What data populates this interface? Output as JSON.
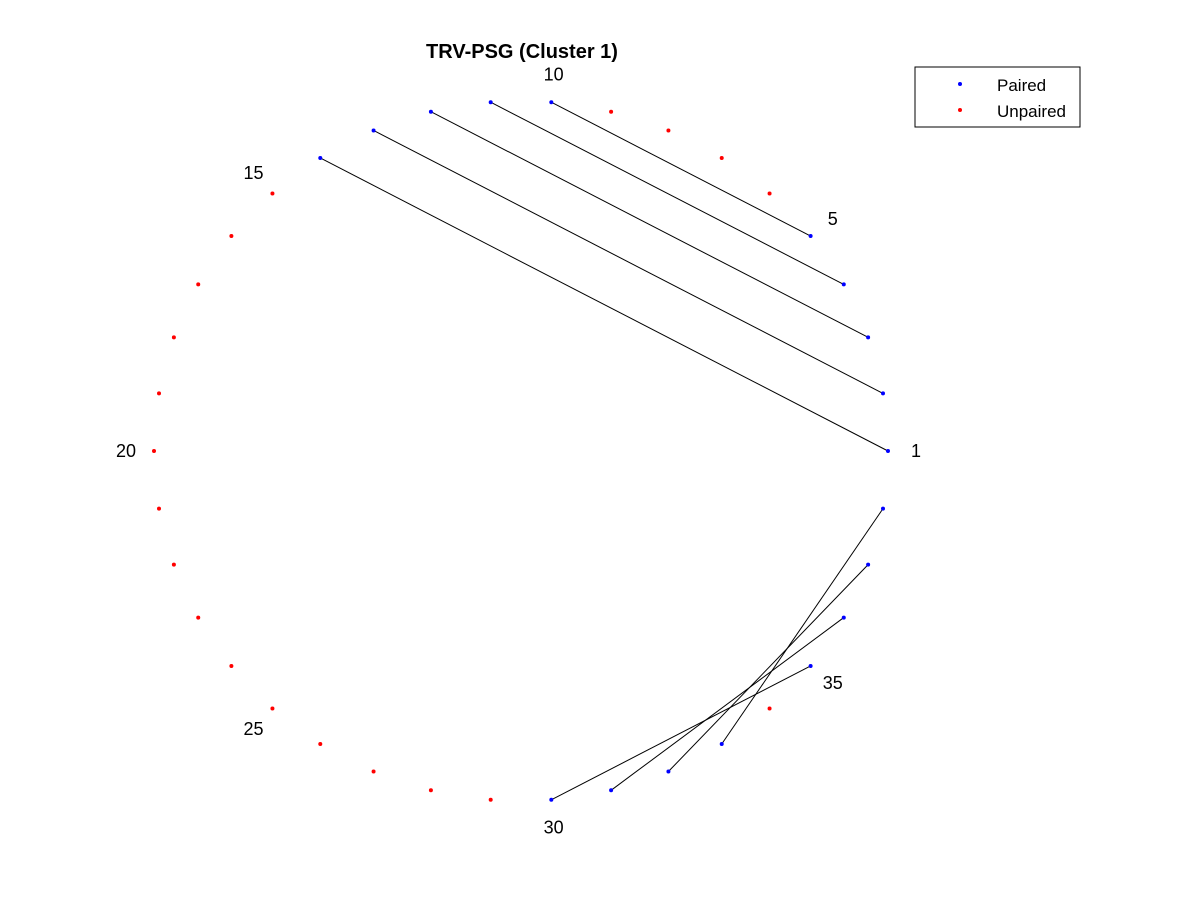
{
  "chart_data": {
    "type": "arc_diagram_circular",
    "title": "TRV-PSG (Cluster 1)",
    "node_count": 38,
    "index_labels": [
      1,
      5,
      10,
      15,
      20,
      25,
      30,
      35
    ],
    "pairs": [
      [
        1,
        14
      ],
      [
        2,
        13
      ],
      [
        3,
        12
      ],
      [
        4,
        11
      ],
      [
        5,
        10
      ],
      [
        30,
        35
      ],
      [
        31,
        36
      ],
      [
        32,
        37
      ],
      [
        33,
        38
      ]
    ],
    "paired_color": "#0000ff",
    "unpaired_color": "#ff0000",
    "link_color": "#000000",
    "legend": {
      "position": "top-right",
      "entries": [
        {
          "label": "Paired",
          "color": "#0000ff"
        },
        {
          "label": "Unpaired",
          "color": "#ff0000"
        }
      ]
    }
  }
}
